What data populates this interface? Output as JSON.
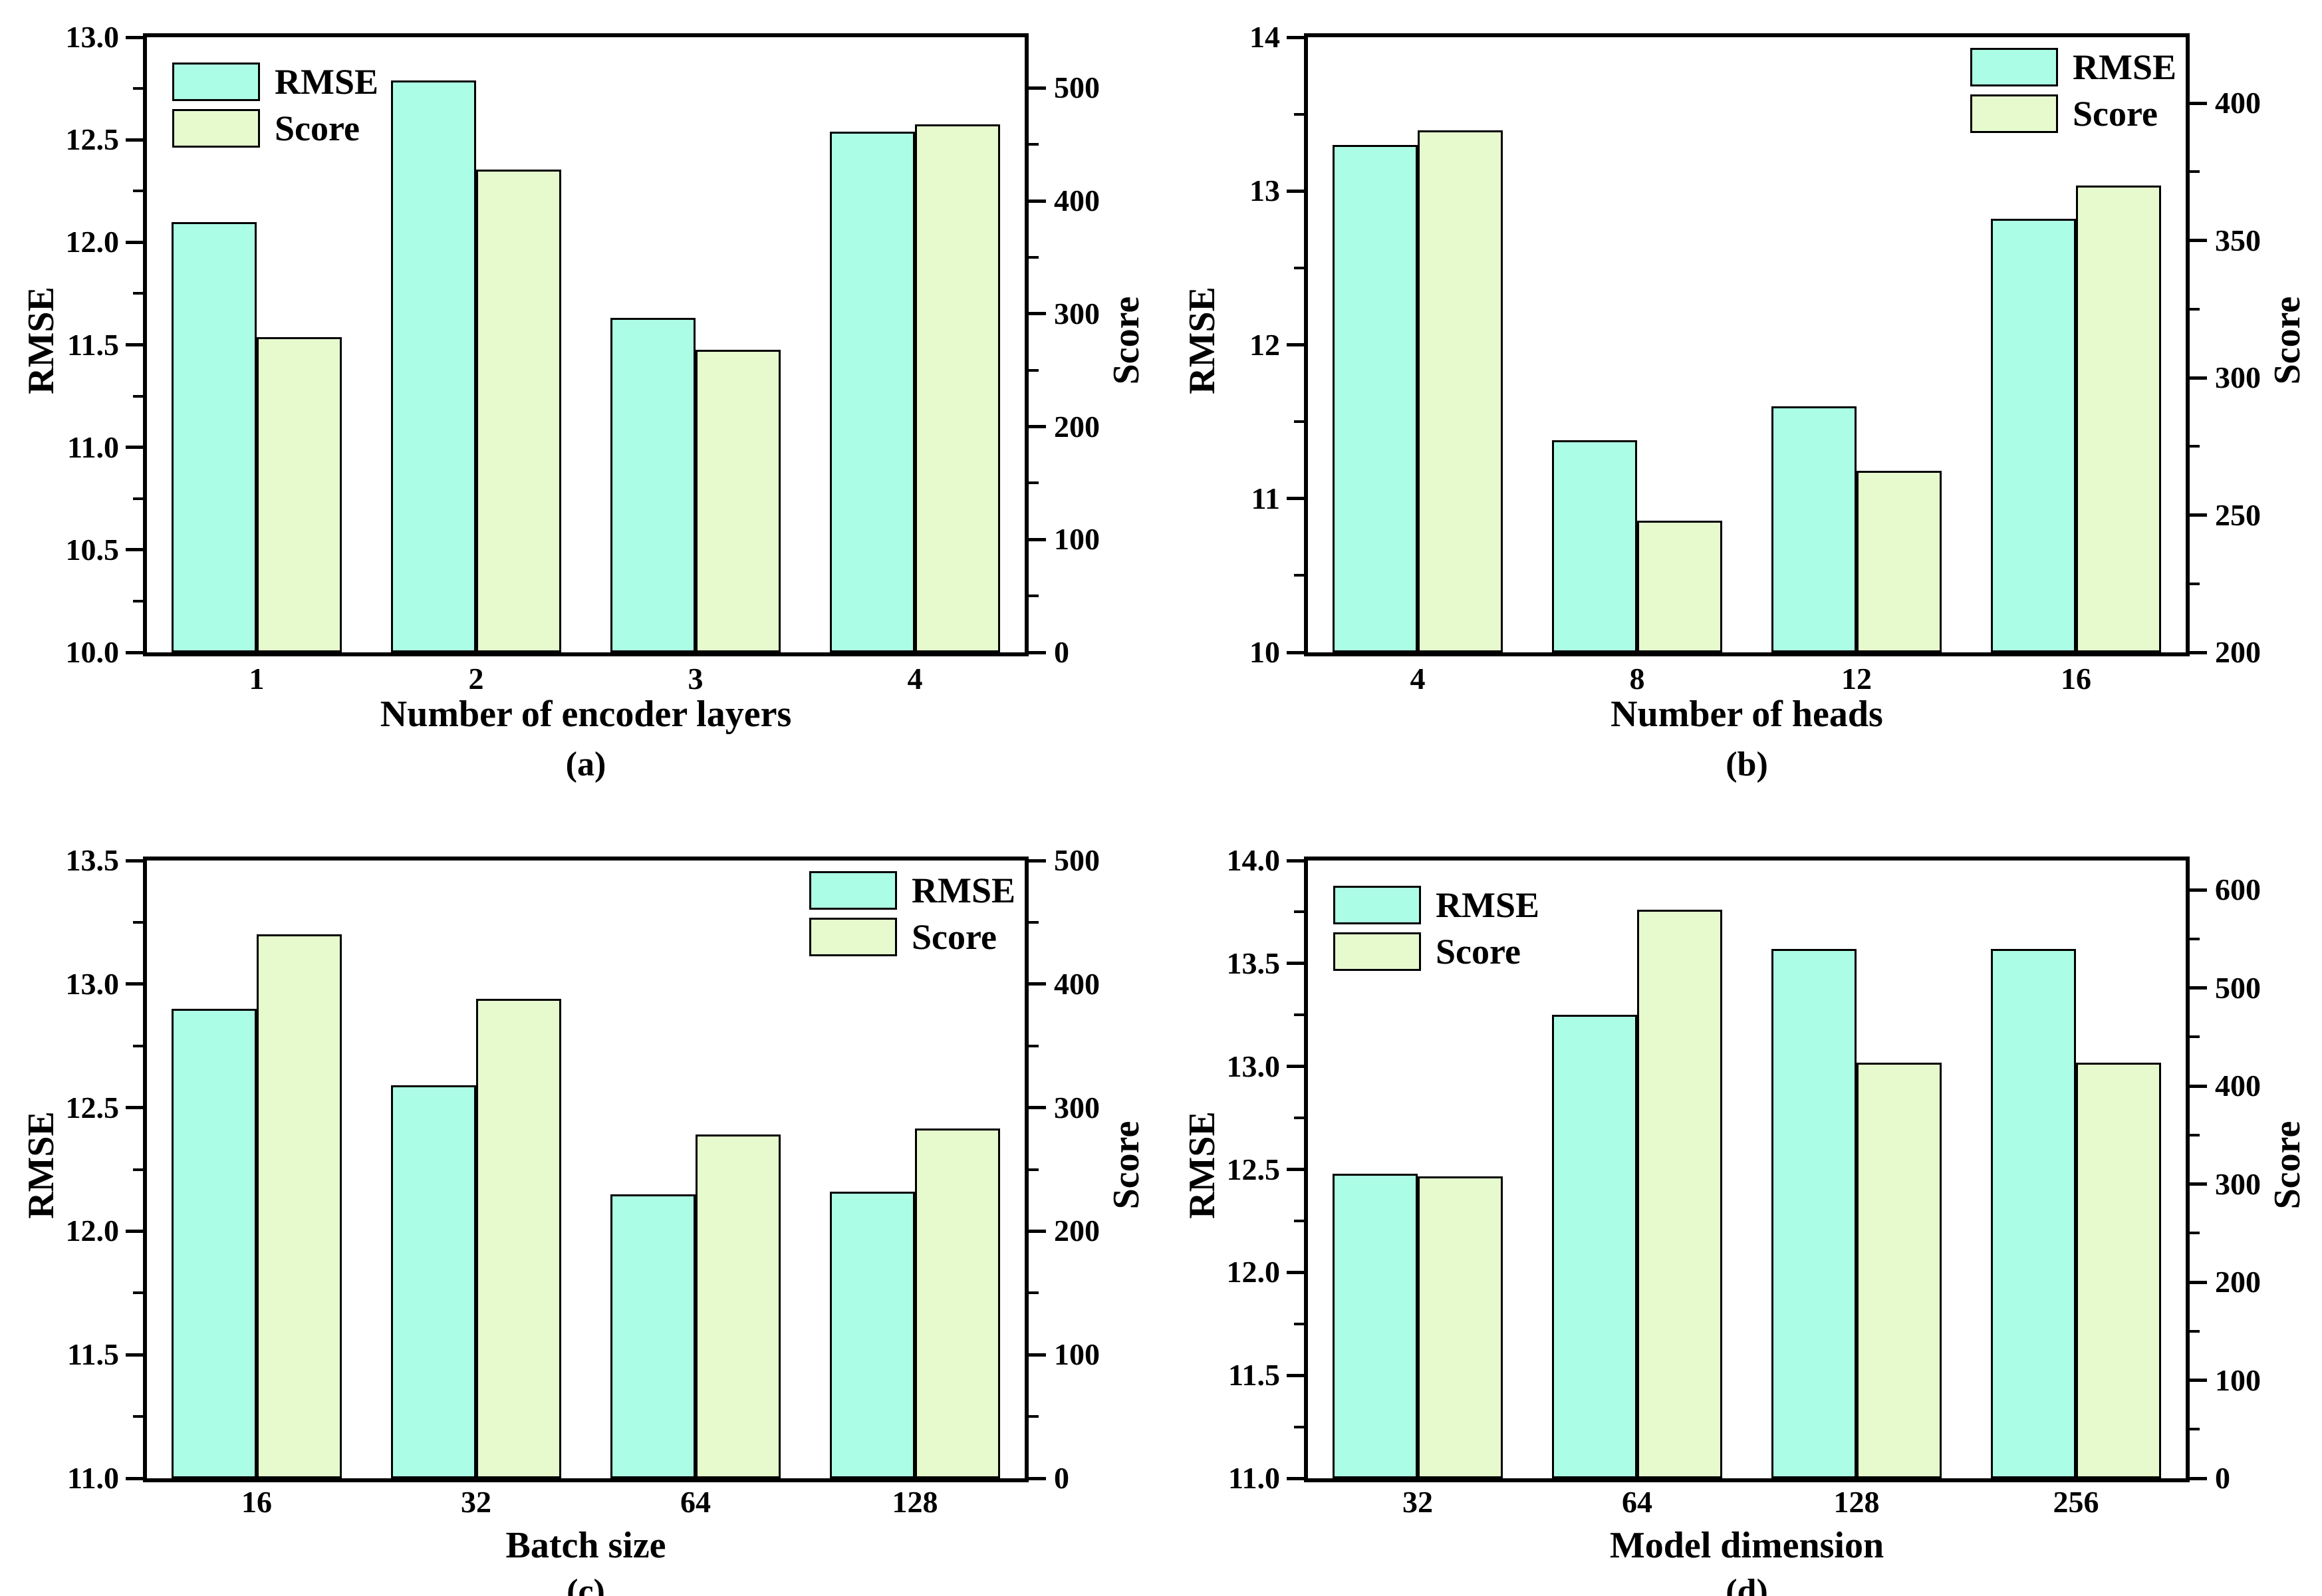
{
  "figure": {
    "background": "#FFFFFF"
  },
  "style": {
    "series_colors": {
      "RMSE": "#ACFDE5",
      "Score": "#E6FACD"
    },
    "edge_color": "#000000",
    "axis_color": "#000000"
  },
  "chart_data": [
    {
      "type": "bar",
      "caption": "(a)",
      "xlabel": "Number of encoder layers",
      "ylabel": "RMSE",
      "ylabel2": "Score",
      "categories": [
        "1",
        "2",
        "3",
        "4"
      ],
      "series": [
        {
          "name": "RMSE",
          "axis": "left",
          "values": [
            12.1,
            12.79,
            11.63,
            12.54
          ]
        },
        {
          "name": "Score",
          "axis": "right",
          "values": [
            279,
            428,
            268,
            468
          ]
        }
      ],
      "left_axis": {
        "min": 10.0,
        "max": 13.0,
        "tick_values": [
          13.0,
          12.5,
          12.0,
          11.5,
          11.0,
          10.5,
          10.0
        ],
        "tick_labels": [
          "13.0",
          "12.5",
          "12.0",
          "11.5",
          "11.0",
          "10.5",
          "10.0"
        ],
        "minor_values": [
          12.75,
          12.25,
          11.75,
          11.25,
          10.75,
          10.25
        ]
      },
      "right_axis": {
        "min": 0,
        "max": 545,
        "tick_values": [
          500,
          400,
          300,
          200,
          100,
          0
        ],
        "tick_labels": [
          "500",
          "400",
          "300",
          "200",
          "100",
          "0"
        ],
        "minor_values": [
          450,
          350,
          250,
          150,
          50
        ]
      },
      "legend_position": "top-left",
      "grid": false
    },
    {
      "type": "bar",
      "caption": "(b)",
      "xlabel": "Number of heads",
      "ylabel": "RMSE",
      "ylabel2": "Score",
      "categories": [
        "4",
        "8",
        "12",
        "16"
      ],
      "series": [
        {
          "name": "RMSE",
          "axis": "left",
          "values": [
            13.3,
            11.38,
            11.6,
            12.82
          ]
        },
        {
          "name": "Score",
          "axis": "right",
          "values": [
            390,
            248,
            266,
            370
          ]
        }
      ],
      "left_axis": {
        "min": 10,
        "max": 14,
        "tick_values": [
          14,
          13,
          12,
          11,
          10
        ],
        "tick_labels": [
          "14",
          "13",
          "12",
          "11",
          "10"
        ],
        "minor_values": [
          13.5,
          12.5,
          11.5,
          10.5
        ]
      },
      "right_axis": {
        "min": 200,
        "max": 424,
        "tick_values": [
          400,
          350,
          300,
          250,
          200
        ],
        "tick_labels": [
          "400",
          "350",
          "300",
          "250",
          "200"
        ],
        "minor_values": [
          375,
          325,
          275,
          225
        ]
      },
      "legend_position": "top-right",
      "grid": false
    },
    {
      "type": "bar",
      "caption": "(c)",
      "xlabel": "Batch size",
      "ylabel": "RMSE",
      "ylabel2": "Score",
      "categories": [
        "16",
        "32",
        "64",
        "128"
      ],
      "series": [
        {
          "name": "RMSE",
          "axis": "left",
          "values": [
            12.9,
            12.59,
            12.15,
            12.16
          ]
        },
        {
          "name": "Score",
          "axis": "right",
          "values": [
            440,
            388,
            278,
            283
          ]
        }
      ],
      "left_axis": {
        "min": 11.0,
        "max": 13.5,
        "tick_values": [
          13.5,
          13.0,
          12.5,
          12.0,
          11.5,
          11.0
        ],
        "tick_labels": [
          "13.5",
          "13.0",
          "12.5",
          "12.0",
          "11.5",
          "11.0"
        ],
        "minor_values": [
          13.25,
          12.75,
          12.25,
          11.75,
          11.25
        ]
      },
      "right_axis": {
        "min": 0,
        "max": 500,
        "tick_values": [
          500,
          400,
          300,
          200,
          100,
          0
        ],
        "tick_labels": [
          "500",
          "400",
          "300",
          "200",
          "100",
          "0"
        ],
        "minor_values": [
          450,
          350,
          250,
          150,
          50
        ]
      },
      "legend_position": "top-right",
      "grid": false
    },
    {
      "type": "bar",
      "caption": "(d)",
      "xlabel": "Model dimension",
      "ylabel": "RMSE",
      "ylabel2": "Score",
      "categories": [
        "32",
        "64",
        "128",
        "256"
      ],
      "series": [
        {
          "name": "RMSE",
          "axis": "left",
          "values": [
            12.48,
            13.25,
            13.57,
            13.57
          ]
        },
        {
          "name": "Score",
          "axis": "right",
          "values": [
            308,
            580,
            424,
            424
          ]
        }
      ],
      "left_axis": {
        "min": 11.0,
        "max": 14.0,
        "tick_values": [
          14.0,
          13.5,
          13.0,
          12.5,
          12.0,
          11.5,
          11.0
        ],
        "tick_labels": [
          "14.0",
          "13.5",
          "13.0",
          "12.5",
          "12.0",
          "11.5",
          "11.0"
        ],
        "minor_values": [
          13.75,
          13.25,
          12.75,
          12.25,
          11.75,
          11.25
        ]
      },
      "right_axis": {
        "min": 0,
        "max": 630,
        "tick_values": [
          600,
          500,
          400,
          300,
          200,
          100,
          0
        ],
        "tick_labels": [
          "600",
          "500",
          "400",
          "300",
          "200",
          "100",
          "0"
        ],
        "minor_values": [
          550,
          450,
          350,
          250,
          150,
          50
        ]
      },
      "legend_position": "top-left",
      "grid": false
    }
  ]
}
